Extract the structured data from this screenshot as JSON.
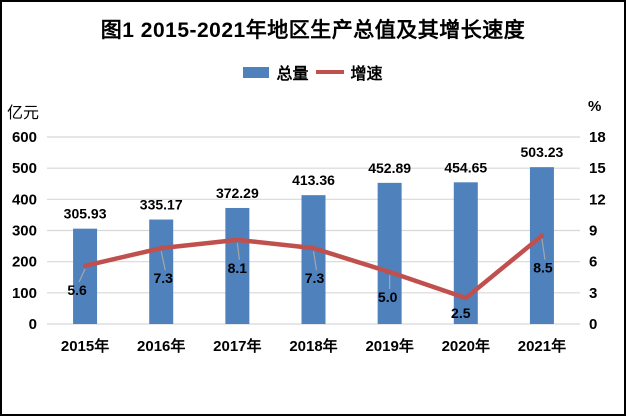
{
  "chart": {
    "title": "图1 2015-2021年地区生产总值及其增长速度",
    "legend": {
      "bar_label": "总量",
      "line_label": "增速"
    },
    "left_axis_unit": "亿元",
    "right_axis_unit": "%"
  },
  "chart_data": {
    "type": "bar",
    "title": "图1 2015-2021年地区生产总值及其增长速度",
    "categories": [
      "2015年",
      "2016年",
      "2017年",
      "2018年",
      "2019年",
      "2020年",
      "2021年"
    ],
    "series": [
      {
        "name": "总量",
        "type": "bar",
        "axis": "left",
        "unit": "亿元",
        "color": "#4F81BD",
        "values": [
          305.93,
          335.17,
          372.29,
          413.36,
          452.89,
          454.65,
          503.23
        ],
        "labels": [
          "305.93",
          "335.17",
          "372.29",
          "413.36",
          "452.89",
          "454.65",
          "503.23"
        ]
      },
      {
        "name": "增速",
        "type": "line",
        "axis": "right",
        "unit": "%",
        "color": "#C0504D",
        "values": [
          5.6,
          7.3,
          8.1,
          7.3,
          5.0,
          2.5,
          8.5
        ],
        "labels": [
          "5.6",
          "7.3",
          "8.1",
          "7.3",
          "5.0",
          "2.5",
          "8.5"
        ]
      }
    ],
    "left_axis": {
      "label": "亿元",
      "min": 0,
      "max": 600,
      "step": 100,
      "ticks": [
        "0",
        "100",
        "200",
        "300",
        "400",
        "500",
        "600"
      ]
    },
    "right_axis": {
      "label": "%",
      "min": 0,
      "max": 18,
      "step": 3,
      "ticks": [
        "0",
        "3",
        "6",
        "9",
        "12",
        "15",
        "18"
      ]
    },
    "grid": true,
    "legend_position": "top",
    "colors": {
      "gridline": "#D8D8D8",
      "leader_line": "#A6A6A6",
      "text": "#000000"
    }
  }
}
